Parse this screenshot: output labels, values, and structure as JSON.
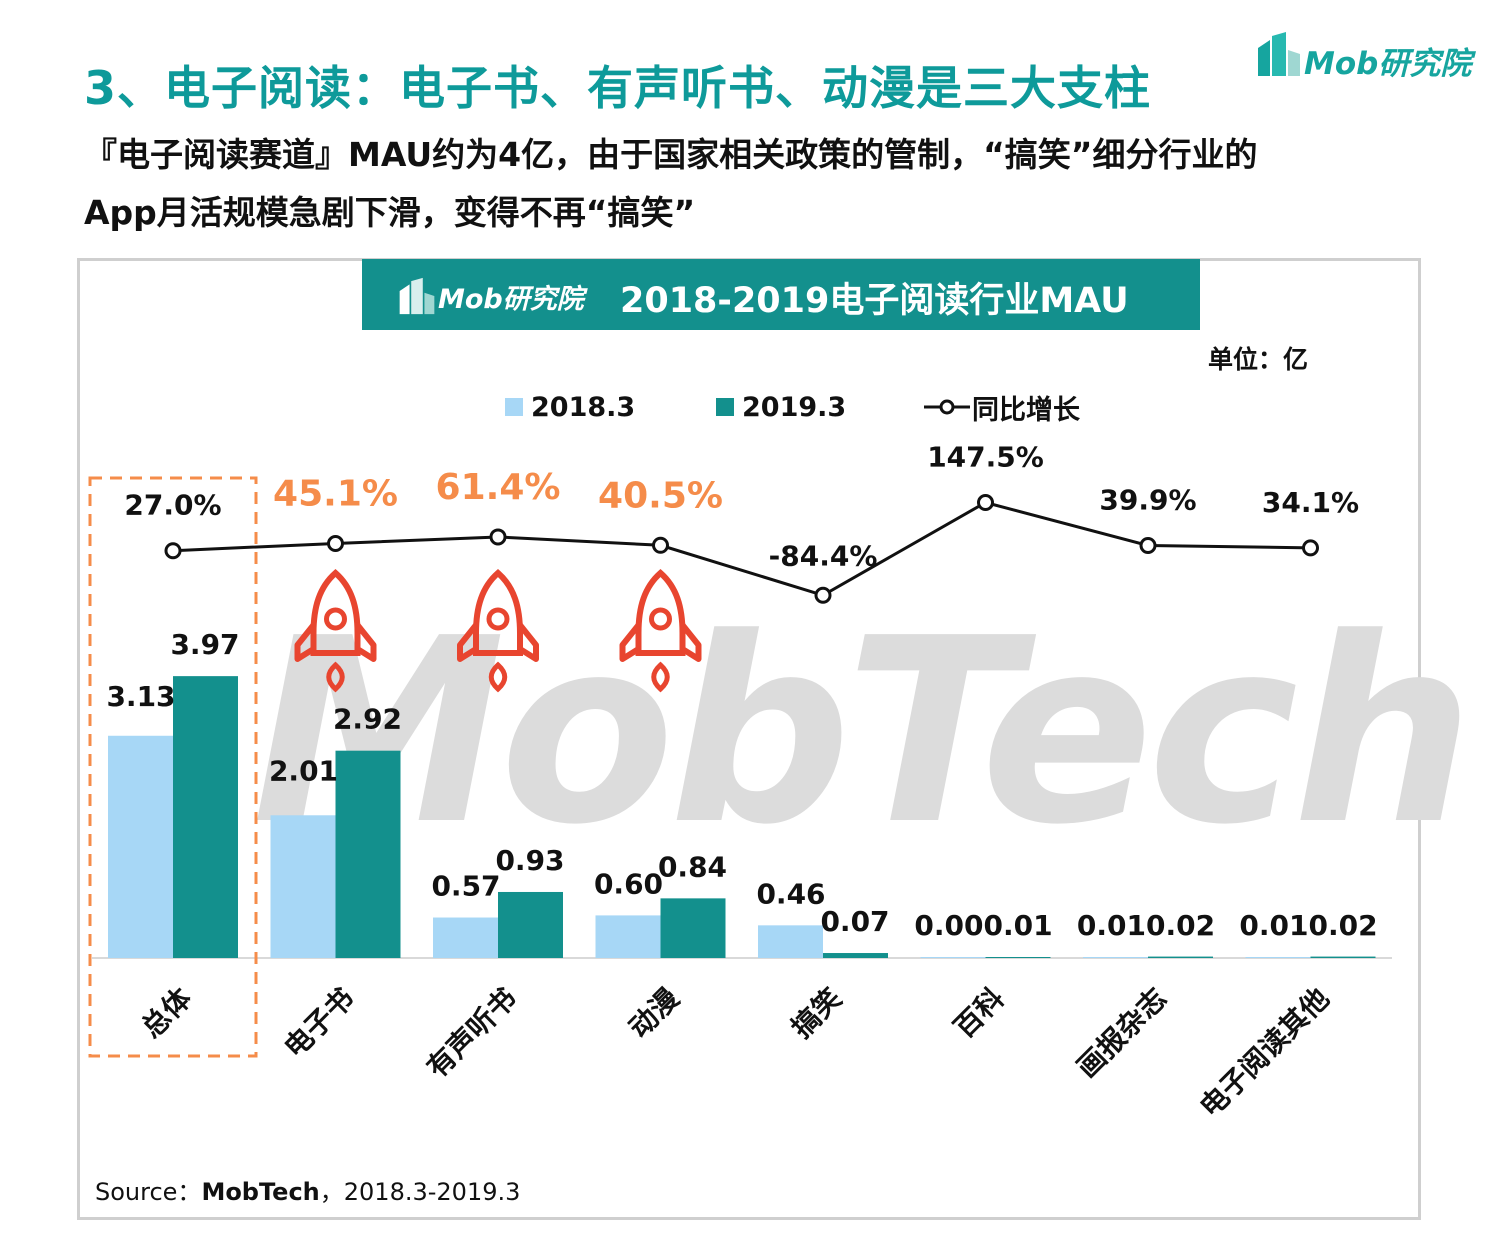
{
  "header": {
    "title": "3、电子阅读：电子书、有声听书、动漫是三大支柱",
    "subtitle_line1": "『电子阅读赛道』MAU约为4亿，由于国家相关政策的管制，“搞笑”细分行业的",
    "subtitle_line2": "App月活规模急剧下滑，变得不再“搞笑”",
    "brand": "Mob研究院"
  },
  "chart_banner": {
    "brand": "Mob研究院",
    "title": "2018-2019电子阅读行业MAU"
  },
  "unit_label": "单位：亿",
  "watermark": "MobTech",
  "colors": {
    "series_2018": "#a7d7f6",
    "series_2019": "#13908d",
    "teal_text": "#0e9a9a",
    "highlight_orange": "#f58c4a",
    "rocket_red": "#e8452f",
    "line": "#111111"
  },
  "chart_data": {
    "type": "bar",
    "categories": [
      "总体",
      "电子书",
      "有声听书",
      "动漫",
      "搞笑",
      "百科",
      "画报杂志",
      "电子阅读其他"
    ],
    "series": [
      {
        "name": "2018.3",
        "values": [
          3.13,
          2.01,
          0.57,
          0.6,
          0.46,
          0.0,
          0.01,
          0.01
        ],
        "labels": [
          "3.13",
          "2.01",
          "0.57",
          "0.60",
          "0.46",
          "0.00",
          "0.01",
          "0.01"
        ]
      },
      {
        "name": "2019.3",
        "values": [
          3.97,
          2.92,
          0.93,
          0.84,
          0.07,
          0.01,
          0.02,
          0.02
        ],
        "labels": [
          "3.97",
          "2.92",
          "0.93",
          "0.84",
          "0.07",
          "0.01",
          "0.02",
          "0.02"
        ]
      }
    ],
    "line": {
      "name": "同比增长",
      "values": [
        27.0,
        45.1,
        61.4,
        40.5,
        -84.4,
        147.5,
        39.9,
        34.1
      ],
      "labels": [
        "27.0%",
        "45.1%",
        "61.4%",
        "40.5%",
        "-84.4%",
        "147.5%",
        "39.9%",
        "34.1%"
      ],
      "highlighted": [
        false,
        true,
        true,
        true,
        false,
        false,
        false,
        false
      ]
    },
    "highlighted_category": "总体",
    "rockets_on": [
      "电子书",
      "有声听书",
      "动漫"
    ]
  },
  "source": {
    "prefix": "Source：",
    "brand": "MobTech",
    "suffix": "，2018.3-2019.3"
  }
}
